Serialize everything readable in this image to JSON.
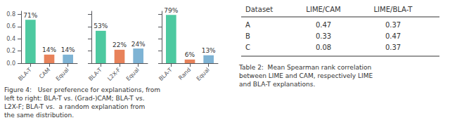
{
  "chart_data": [
    {
      "type": "bar",
      "categories": [
        "BLA-T",
        "CAM",
        "Equal"
      ],
      "values": [
        0.71,
        0.14,
        0.14
      ],
      "value_labels": [
        "71%",
        "14%",
        "14%"
      ],
      "colors": [
        "#4DC9A0",
        "#E8825A",
        "#7EB3D4"
      ],
      "data_labels": true,
      "ylim": [
        0,
        0.85
      ],
      "yticks": [
        {
          "value": 0.0,
          "label": "0.0"
        },
        0.2,
        0.4,
        0.6,
        0.8
      ],
      "grid": false
    },
    {
      "type": "bar",
      "categories": [
        "BLA-T",
        "L2X-F",
        "Equal"
      ],
      "values": [
        0.53,
        0.22,
        0.24
      ],
      "value_labels": [
        "53%",
        "22%",
        "24%"
      ],
      "colors": [
        "#4DC9A0",
        "#E8825A",
        "#7EB3D4"
      ],
      "data_labels": true,
      "ylim": [
        0,
        0.85
      ],
      "yticks": [
        {
          "value": 0.0,
          "label": "0.0"
        },
        0.2,
        0.4,
        0.6,
        0.8
      ],
      "grid": false,
      "tick_labels": "x"
    },
    {
      "type": "bar",
      "categories": [
        "BLA-T",
        "Rand",
        "Equal"
      ],
      "values": [
        0.79,
        0.06,
        0.13
      ],
      "value_labels": [
        "79%",
        "6%",
        "13%"
      ],
      "colors": [
        "#4DC9A0",
        "#E8825A",
        "#7EB3D4"
      ],
      "data_labels": true,
      "ylim": [
        0,
        0.85
      ],
      "yticks": [
        {
          "value": 0.0,
          "label": "0.0"
        },
        0.2,
        0.4,
        0.6,
        0.8
      ],
      "grid": false,
      "tick_labels": "x"
    }
  ],
  "annotations": [
    "Figure 4:   User preference for explanations, from\nleft to right: BLA-T vs. (Grad-)CAM; BLA-T vs.\nL2X-F; BLA-T vs.  a random explanation from\nthe same distribution."
  ],
  "table": {
    "header": [
      "Dataset",
      "LIME/CAM",
      "LIME/BLA-T"
    ],
    "rows": [
      [
        "A",
        "0.47",
        "0.37"
      ],
      [
        "B",
        "0.33",
        "0.47"
      ],
      [
        "C",
        "0.08",
        "0.37"
      ]
    ],
    "caption": "Table 2:  Mean Spearman rank correlation\nbetween LIME and CAM, respectively LIME\nand BLA-T explanations."
  }
}
